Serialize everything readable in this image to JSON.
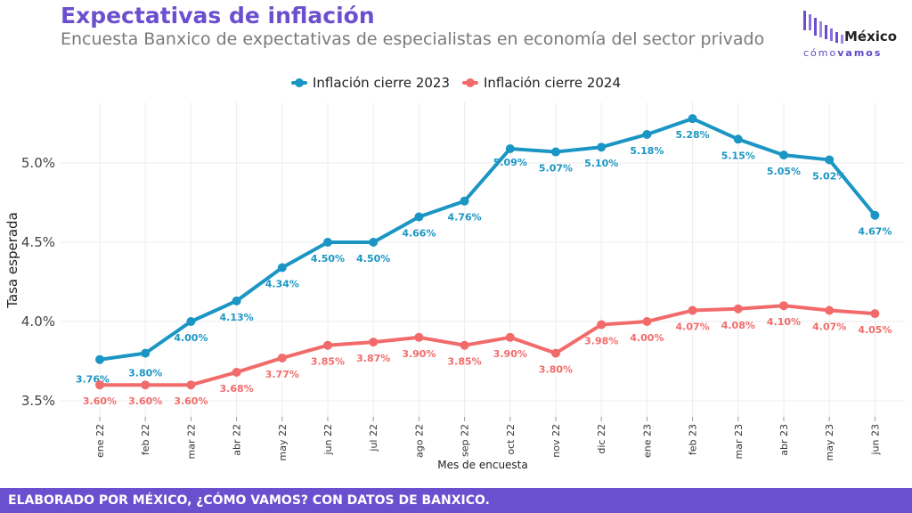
{
  "header": {
    "title": "Expectativas de inflación",
    "subtitle": "Encuesta Banxico de expectativas de especialistas en economía del sector privado"
  },
  "logo": {
    "name": "México",
    "tag_light": "cómo",
    "tag_bold": "vamos"
  },
  "footer": {
    "text": "ELABORADO POR MÉXICO, ¿CÓMO VAMOS? CON DATOS DE BANXICO."
  },
  "colors": {
    "accent": "#6a4fcf",
    "series_2023": "#1b96c4",
    "series_2024": "#f26b6b"
  },
  "chart_data": {
    "type": "line",
    "xlabel": "Mes de encuesta",
    "ylabel": "Tasa esperada",
    "ylim": [
      3.4,
      5.4
    ],
    "yticks": [
      3.5,
      4.0,
      4.5,
      5.0
    ],
    "ytick_labels": [
      "3.5%",
      "4.0%",
      "4.5%",
      "5.0%"
    ],
    "grid": true,
    "legend_position": "top-center",
    "categories": [
      "ene 22",
      "feb 22",
      "mar 22",
      "abr 22",
      "may 22",
      "jun 22",
      "jul 22",
      "ago 22",
      "sep 22",
      "oct 22",
      "nov 22",
      "dic 22",
      "ene 23",
      "feb 23",
      "mar 23",
      "abr 23",
      "may 23",
      "jun 23"
    ],
    "series": [
      {
        "name": "Inflación cierre 2023",
        "color": "#1b96c4",
        "values": [
          3.76,
          3.8,
          4.0,
          4.13,
          4.34,
          4.5,
          4.5,
          4.66,
          4.76,
          5.09,
          5.07,
          5.1,
          5.18,
          5.28,
          5.15,
          5.05,
          5.02,
          4.67
        ],
        "labels": [
          "3.76%",
          "3.80%",
          "4.00%",
          "4.13%",
          "4.34%",
          "4.50%",
          "4.50%",
          "4.66%",
          "4.76%",
          "5.09%",
          "5.07%",
          "5.10%",
          "5.18%",
          "5.28%",
          "5.15%",
          "5.05%",
          "5.02%",
          "4.67%"
        ]
      },
      {
        "name": "Inflación cierre 2024",
        "color": "#f26b6b",
        "values": [
          3.6,
          3.6,
          3.6,
          3.68,
          3.77,
          3.85,
          3.87,
          3.9,
          3.85,
          3.9,
          3.8,
          3.98,
          4.0,
          4.07,
          4.08,
          4.1,
          4.07,
          4.05
        ],
        "labels": [
          "3.60%",
          "3.60%",
          "3.60%",
          "3.68%",
          "3.77%",
          "3.85%",
          "3.87%",
          "3.90%",
          "3.85%",
          "3.90%",
          "3.80%",
          "3.98%",
          "4.00%",
          "4.07%",
          "4.08%",
          "4.10%",
          "4.07%",
          "4.05%"
        ]
      }
    ]
  }
}
